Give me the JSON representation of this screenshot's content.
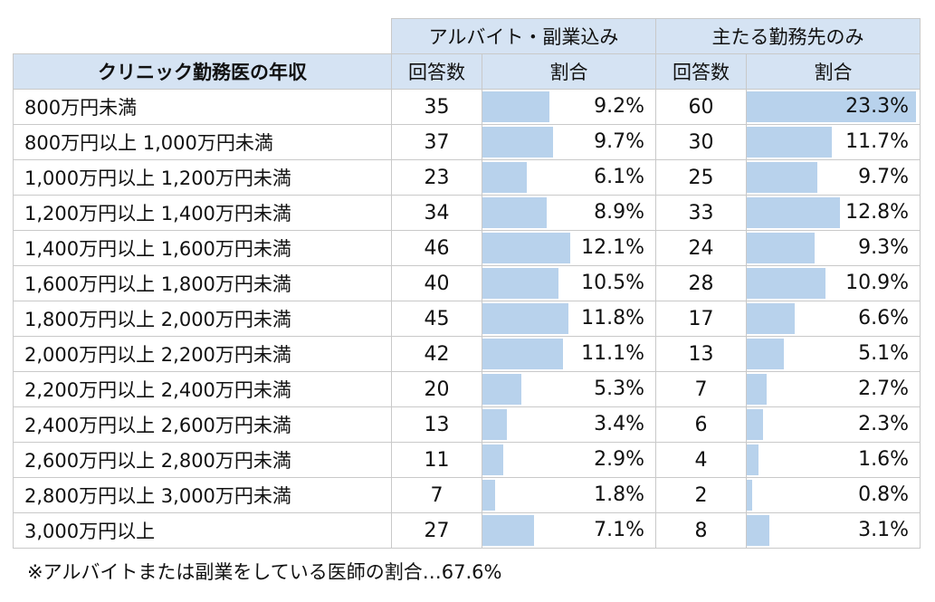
{
  "table": {
    "title": "クリニック勤務医の年収",
    "group_a": "アルバイト・副業込み",
    "group_b": "主たる勤務先のみ",
    "col_count": "回答数",
    "col_ratio": "割合",
    "rows": [
      {
        "label": "800万円未満",
        "a_count": "35",
        "a_pct": "9.2%",
        "a_val": 9.2,
        "b_count": "60",
        "b_pct": "23.3%",
        "b_val": 23.3
      },
      {
        "label": "800万円以上 1,000万円未満",
        "a_count": "37",
        "a_pct": "9.7%",
        "a_val": 9.7,
        "b_count": "30",
        "b_pct": "11.7%",
        "b_val": 11.7
      },
      {
        "label": "1,000万円以上 1,200万円未満",
        "a_count": "23",
        "a_pct": "6.1%",
        "a_val": 6.1,
        "b_count": "25",
        "b_pct": "9.7%",
        "b_val": 9.7
      },
      {
        "label": "1,200万円以上 1,400万円未満",
        "a_count": "34",
        "a_pct": "8.9%",
        "a_val": 8.9,
        "b_count": "33",
        "b_pct": "12.8%",
        "b_val": 12.8
      },
      {
        "label": "1,400万円以上 1,600万円未満",
        "a_count": "46",
        "a_pct": "12.1%",
        "a_val": 12.1,
        "b_count": "24",
        "b_pct": "9.3%",
        "b_val": 9.3
      },
      {
        "label": "1,600万円以上 1,800万円未満",
        "a_count": "40",
        "a_pct": "10.5%",
        "a_val": 10.5,
        "b_count": "28",
        "b_pct": "10.9%",
        "b_val": 10.9
      },
      {
        "label": "1,800万円以上 2,000万円未満",
        "a_count": "45",
        "a_pct": "11.8%",
        "a_val": 11.8,
        "b_count": "17",
        "b_pct": "6.6%",
        "b_val": 6.6
      },
      {
        "label": "2,000万円以上 2,200万円未満",
        "a_count": "42",
        "a_pct": "11.1%",
        "a_val": 11.1,
        "b_count": "13",
        "b_pct": "5.1%",
        "b_val": 5.1
      },
      {
        "label": "2,200万円以上 2,400万円未満",
        "a_count": "20",
        "a_pct": "5.3%",
        "a_val": 5.3,
        "b_count": "7",
        "b_pct": "2.7%",
        "b_val": 2.7
      },
      {
        "label": "2,400万円以上 2,600万円未満",
        "a_count": "13",
        "a_pct": "3.4%",
        "a_val": 3.4,
        "b_count": "6",
        "b_pct": "2.3%",
        "b_val": 2.3
      },
      {
        "label": "2,600万円以上 2,800万円未満",
        "a_count": "11",
        "a_pct": "2.9%",
        "a_val": 2.9,
        "b_count": "4",
        "b_pct": "1.6%",
        "b_val": 1.6
      },
      {
        "label": "2,800万円以上 3,000万円未満",
        "a_count": "7",
        "a_pct": "1.8%",
        "a_val": 1.8,
        "b_count": "2",
        "b_pct": "0.8%",
        "b_val": 0.8
      },
      {
        "label": "3,000万円以上",
        "a_count": "27",
        "a_pct": "7.1%",
        "a_val": 7.1,
        "b_count": "8",
        "b_pct": "3.1%",
        "b_val": 3.1
      }
    ]
  },
  "note": "※アルバイトまたは副業をしている医師の割合…67.6%",
  "colors": {
    "header_bg": "#d5e3f3",
    "bar": "#b8d2ec",
    "border": "#c9c9c9"
  }
}
